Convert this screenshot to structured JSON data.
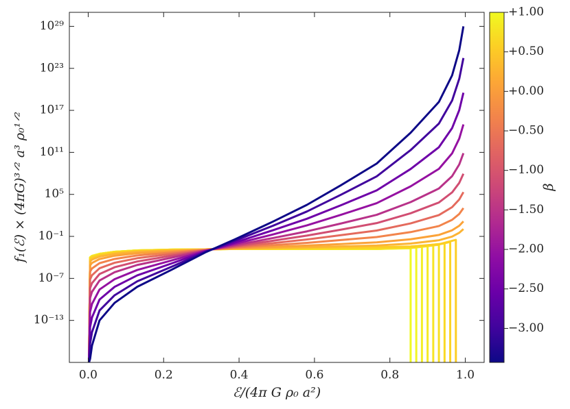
{
  "chart_data": {
    "type": "line",
    "xlabel": "ℰ/(4π G ρ₀ a²)",
    "ylabel": "f₁(ℰ) × (4πG)³ᐟ² a³ ρ₀¹ᐟ²",
    "xlim": [
      -0.05,
      1.05
    ],
    "xticks": [
      {
        "value": 0,
        "label": "0.0"
      },
      0.2,
      0.4,
      0.6,
      0.8,
      {
        "value": 1,
        "label": "1.0"
      }
    ],
    "yscale": "log",
    "ylim": [
      1e-19,
      1e+31
    ],
    "yticks": [
      {
        "value": 1e-13,
        "label": "10⁻¹³"
      },
      {
        "value": 1e-07,
        "label": "10⁻⁷"
      },
      {
        "value": 0.1,
        "label": "10⁻¹"
      },
      {
        "value": 100000.0,
        "label": "10⁵"
      },
      {
        "value": 100000000000.0,
        "label": "10¹¹"
      },
      {
        "value": 1e+17,
        "label": "10¹⁷"
      },
      {
        "value": 1e+23,
        "label": "10²³"
      },
      {
        "value": 1e+29,
        "label": "10²⁹"
      }
    ],
    "series": [
      {
        "color": "#f0f921",
        "x": [
          0.002,
          0.005,
          0.01,
          0.03,
          0.07,
          0.13,
          0.22,
          0.31,
          0.39,
          0.49,
          0.58,
          0.67,
          0.765,
          0.855,
          0.855
        ],
        "values": [
          1e-19,
          0.0001,
          0.00016,
          0.00032,
          0.00063,
          0.001,
          0.0013,
          0.0014,
          0.0016,
          0.0016,
          0.0016,
          0.0016,
          0.0016,
          0.002,
          1e-19
        ]
      },
      {
        "color": "#f1f525",
        "x": [
          0.002,
          0.005,
          0.01,
          0.03,
          0.07,
          0.13,
          0.22,
          0.31,
          0.39,
          0.49,
          0.58,
          0.67,
          0.765,
          0.87,
          0.87
        ],
        "values": [
          1e-19,
          0.0001,
          0.00016,
          0.00032,
          0.00063,
          0.001,
          0.0013,
          0.0014,
          0.0016,
          0.0016,
          0.0016,
          0.0016,
          0.0016,
          0.0025,
          1e-19
        ]
      },
      {
        "color": "#f3ee27",
        "x": [
          0.002,
          0.005,
          0.01,
          0.03,
          0.07,
          0.13,
          0.22,
          0.31,
          0.39,
          0.49,
          0.58,
          0.67,
          0.765,
          0.885,
          0.885
        ],
        "values": [
          1e-19,
          0.0001,
          0.00016,
          0.00032,
          0.00063,
          0.001,
          0.0013,
          0.0014,
          0.0016,
          0.0016,
          0.0016,
          0.0016,
          0.0016,
          0.0032,
          1e-19
        ]
      },
      {
        "color": "#f5e926",
        "x": [
          0.002,
          0.005,
          0.01,
          0.03,
          0.07,
          0.13,
          0.22,
          0.31,
          0.39,
          0.49,
          0.58,
          0.67,
          0.765,
          0.855,
          0.9,
          0.9
        ],
        "values": [
          1e-19,
          0.0001,
          0.00016,
          0.00032,
          0.00063,
          0.001,
          0.0013,
          0.0014,
          0.0016,
          0.0016,
          0.0016,
          0.0016,
          0.0016,
          0.0022,
          0.004,
          1e-19
        ]
      },
      {
        "color": "#f7e425",
        "x": [
          0.002,
          0.005,
          0.01,
          0.03,
          0.07,
          0.13,
          0.22,
          0.31,
          0.39,
          0.49,
          0.58,
          0.67,
          0.765,
          0.855,
          0.915,
          0.915
        ],
        "values": [
          1e-19,
          7e-05,
          0.00012,
          0.00025,
          0.00054,
          0.00089,
          0.0012,
          0.0014,
          0.0017,
          0.0017,
          0.0018,
          0.0019,
          0.0021,
          0.0026,
          0.005,
          1e-19
        ]
      },
      {
        "color": "#f8df25",
        "x": [
          0.002,
          0.005,
          0.01,
          0.03,
          0.07,
          0.13,
          0.22,
          0.31,
          0.39,
          0.49,
          0.58,
          0.67,
          0.765,
          0.855,
          0.93,
          0.93
        ],
        "values": [
          1e-19,
          7e-05,
          0.00012,
          0.00025,
          0.00054,
          0.00089,
          0.0012,
          0.0014,
          0.0017,
          0.0017,
          0.0018,
          0.0019,
          0.0021,
          0.0027,
          0.0063,
          1e-19
        ]
      },
      {
        "color": "#f9d924",
        "x": [
          0.002,
          0.005,
          0.01,
          0.03,
          0.07,
          0.13,
          0.22,
          0.31,
          0.39,
          0.49,
          0.58,
          0.67,
          0.765,
          0.855,
          0.945,
          0.945
        ],
        "values": [
          1e-19,
          7e-05,
          0.00012,
          0.00025,
          0.00054,
          0.00089,
          0.0012,
          0.0014,
          0.0017,
          0.0017,
          0.0018,
          0.0019,
          0.0021,
          0.0028,
          0.01,
          1e-19
        ]
      },
      {
        "color": "#fad324",
        "x": [
          0.002,
          0.005,
          0.01,
          0.03,
          0.07,
          0.13,
          0.22,
          0.31,
          0.39,
          0.49,
          0.58,
          0.67,
          0.765,
          0.855,
          0.93,
          0.96,
          0.96
        ],
        "values": [
          1e-19,
          5e-05,
          8.7e-05,
          0.0002,
          0.00045,
          0.00079,
          0.0011,
          0.0014,
          0.0017,
          0.0019,
          0.0021,
          0.0024,
          0.0028,
          0.0035,
          0.007,
          0.016,
          1e-19
        ]
      },
      {
        "color": "#fcce25",
        "x": [
          0.002,
          0.005,
          0.01,
          0.03,
          0.07,
          0.13,
          0.22,
          0.31,
          0.39,
          0.49,
          0.58,
          0.67,
          0.765,
          0.855,
          0.93,
          0.975,
          0.975
        ],
        "values": [
          1e-19,
          5e-05,
          8.7e-05,
          0.0002,
          0.00045,
          0.00079,
          0.0011,
          0.0014,
          0.0017,
          0.0019,
          0.0021,
          0.0024,
          0.0028,
          0.0036,
          0.0075,
          0.032,
          1e-19
        ]
      },
      {
        "color": "#fcb434",
        "x": [
          0.002,
          0.005,
          0.01,
          0.03,
          0.07,
          0.13,
          0.22,
          0.31,
          0.39,
          0.49,
          0.58,
          0.67,
          0.765,
          0.855,
          0.93,
          0.965,
          0.984,
          0.995
        ],
        "values": [
          1e-19,
          2.6e-05,
          4.8e-05,
          0.00013,
          0.00032,
          0.00062,
          0.00095,
          0.0013,
          0.0018,
          0.0023,
          0.0029,
          0.0037,
          0.005,
          0.0095,
          0.028,
          0.095,
          0.33,
          1.1
        ]
      },
      {
        "color": "#fba238",
        "x": [
          0.002,
          0.005,
          0.01,
          0.03,
          0.07,
          0.13,
          0.22,
          0.31,
          0.39,
          0.49,
          0.58,
          0.67,
          0.765,
          0.855,
          0.93,
          0.965,
          0.984,
          0.995
        ],
        "values": [
          1e-19,
          7.4e-06,
          1.6e-05,
          5.8e-05,
          0.00017,
          0.00039,
          0.00074,
          0.0013,
          0.002,
          0.0032,
          0.0049,
          0.0081,
          0.014,
          0.039,
          0.16,
          0.74,
          3.3,
          14
        ]
      },
      {
        "color": "#f2844b",
        "x": [
          0.002,
          0.005,
          0.01,
          0.03,
          0.07,
          0.13,
          0.22,
          0.31,
          0.39,
          0.49,
          0.58,
          0.67,
          0.765,
          0.855,
          0.93,
          0.965,
          0.984,
          0.995
        ],
        "values": [
          1e-19,
          9.3e-07,
          2.6e-06,
          1.5e-05,
          6e-05,
          0.00019,
          0.00049,
          0.0012,
          0.0025,
          0.0056,
          0.012,
          0.03,
          0.081,
          0.41,
          3,
          23,
          160,
          1100
        ]
      },
      {
        "color": "#e46a5d",
        "x": [
          0.002,
          0.005,
          0.01,
          0.03,
          0.07,
          0.13,
          0.22,
          0.31,
          0.39,
          0.49,
          0.58,
          0.67,
          0.765,
          0.855,
          0.93,
          0.965,
          0.984,
          0.995
        ],
        "values": [
          1e-19,
          7.4e-08,
          2.8e-07,
          2.8e-06,
          1.7e-05,
          7.6e-05,
          0.0003,
          0.0011,
          0.0032,
          0.011,
          0.036,
          0.15,
          0.69,
          7.2,
          110,
          1500,
          19000.0,
          210000.0
        ]
      },
      {
        "color": "#d14e72",
        "x": [
          0.002,
          0.005,
          0.01,
          0.03,
          0.07,
          0.13,
          0.22,
          0.31,
          0.39,
          0.49,
          0.58,
          0.67,
          0.765,
          0.855,
          0.93,
          0.965,
          0.984,
          0.995
        ],
        "values": [
          1e-19,
          4.1e-09,
          2.1e-08,
          4.2e-07,
          3.9e-06,
          2.6e-05,
          0.00017,
          0.001,
          0.0042,
          0.024,
          0.13,
          0.91,
          7.9,
          200,
          6900,
          190000.0,
          4400000.0,
          89000000.0
        ]
      },
      {
        "color": "#b83289",
        "x": [
          0.002,
          0.005,
          0.01,
          0.03,
          0.07,
          0.13,
          0.22,
          0.31,
          0.39,
          0.49,
          0.58,
          0.67,
          0.765,
          0.855,
          0.93,
          0.965,
          0.984,
          0.995
        ],
        "values": [
          1e-19,
          1.6e-10,
          1.2e-09,
          5e-08,
          7.6e-07,
          8.3e-06,
          8.7e-05,
          0.00093,
          0.0058,
          0.058,
          0.52,
          6.9,
          120,
          7900,
          690000.0,
          40000000.0,
          1900000000.0,
          76000000000.0
        ]
      },
      {
        "color": "#9511a1",
        "x": [
          0.002,
          0.005,
          0.01,
          0.03,
          0.07,
          0.13,
          0.22,
          0.31,
          0.39,
          0.49,
          0.58,
          0.67,
          0.765,
          0.855,
          0.93,
          0.965,
          0.984,
          0.995
        ],
        "values": [
          1e-19,
          1.7e-12,
          2.2e-11,
          2.6e-09,
          7.8e-08,
          1.6e-06,
          3.5e-05,
          0.00081,
          0.0089,
          0.19,
          3.8,
          120,
          5500,
          1400000.0,
          440000000.0,
          72000000000.0,
          9500000000000.0,
          980000000000000.0
        ]
      },
      {
        "color": "#6e00a8",
        "x": [
          0.002,
          0.005,
          0.01,
          0.03,
          0.07,
          0.13,
          0.22,
          0.31,
          0.39,
          0.49,
          0.58,
          0.67,
          0.765,
          0.855,
          0.93,
          0.965,
          0.984,
          0.995
        ],
        "values": [
          1e-19,
          1.1e-14,
          2.6e-13,
          9.5e-11,
          6.2e-09,
          2.7e-07,
          1.3e-05,
          0.00069,
          0.014,
          0.76,
          33,
          2800,
          370000.0,
          420000000.0,
          540000000000.0,
          290000000000000.0,
          1.1e+17,
          3.3e+19
        ]
      },
      {
        "color": "#40049d",
        "x": [
          0.002,
          0.005,
          0.01,
          0.03,
          0.07,
          0.13,
          0.22,
          0.31,
          0.39,
          0.49,
          0.58,
          0.67,
          0.765,
          0.855,
          0.93,
          0.965,
          0.984,
          0.995
        ],
        "values": [
          1e-19,
          4.7e-17,
          2.1e-15,
          2.6e-12,
          3.9e-10,
          3.8e-08,
          4.3e-06,
          0.00059,
          0.025,
          3.3,
          360,
          87000.0,
          37000000.0,
          210000000000.0,
          1300000000000000.0,
          2.5e+18,
          3.3e+21,
          3e+24
        ]
      },
      {
        "color": "#0d0887",
        "x": [
          0.002,
          0.005,
          0.01,
          0.03,
          0.07,
          0.13,
          0.22,
          0.31,
          0.39,
          0.49,
          0.58,
          0.67,
          0.765,
          0.855,
          0.93,
          0.965,
          0.984,
          0.995
        ],
        "values": [
          1e-19,
          3.2e-19,
          2.5e-17,
          1e-13,
          3.2e-11,
          6.3e-09,
          1.6e-06,
          0.0005,
          0.04,
          13,
          3200,
          2000000.0,
          2500000000.0,
          63000000000000.0,
          1.6e+18,
          1e+22,
          4e+25,
          1e+29
        ]
      }
    ],
    "colorbar": {
      "label": "β",
      "lim": [
        -3.43,
        1.0
      ],
      "colors": [
        "#0d0887",
        "#41049d",
        "#6a00a8",
        "#8f0da4",
        "#b12a90",
        "#cc4778",
        "#e16462",
        "#f2844b",
        "#fca636",
        "#fcce25",
        "#f0f921"
      ],
      "ticks": [
        {
          "value": -3,
          "label": "−3.00"
        },
        {
          "value": -2.5,
          "label": "−2.50"
        },
        {
          "value": -2,
          "label": "−2.00"
        },
        {
          "value": -1.5,
          "label": "−1.50"
        },
        {
          "value": -1,
          "label": "−1.00"
        },
        {
          "value": -0.5,
          "label": "−0.50"
        },
        {
          "value": 0,
          "label": "+0.00"
        },
        {
          "value": 0.5,
          "label": "+0.50"
        },
        {
          "value": 1,
          "label": "+1.00"
        }
      ]
    }
  }
}
